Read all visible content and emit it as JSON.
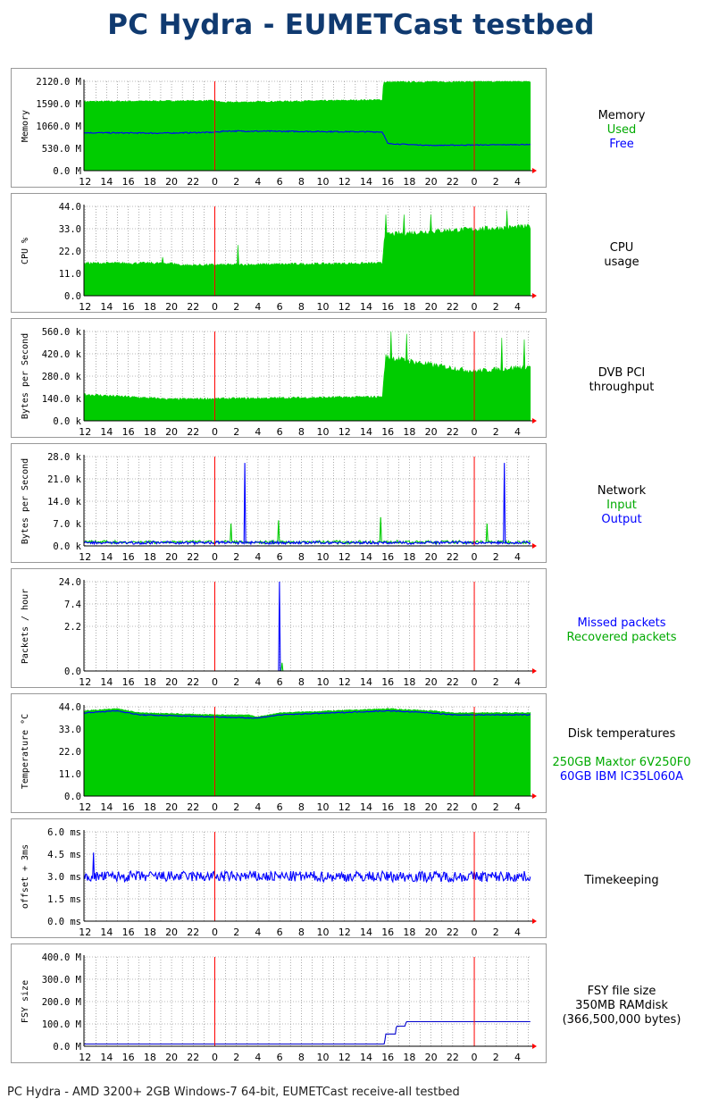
{
  "title": "PC Hydra - EUMETCast testbed",
  "footer": "PC Hydra - AMD 3200+ 2GB Windows-7 64-bit, EUMETCast receive-all testbed",
  "colors": {
    "green": "#00cc00",
    "blue": "#0000ff",
    "red": "#ff0000",
    "grid": "#777777",
    "label": "#000000"
  },
  "x_ticks": [
    "12",
    "14",
    "16",
    "18",
    "20",
    "22",
    "0",
    "2",
    "4",
    "6",
    "8",
    "10",
    "12",
    "14",
    "16",
    "18",
    "20",
    "22",
    "0",
    "2",
    "4"
  ],
  "chart_data": [
    {
      "type": "area",
      "ylabel": "Memory",
      "yticks": [
        "2120.0 M",
        "1590.0 M",
        "1060.0 M",
        "530.0 M",
        "0.0 M"
      ],
      "ylim": [
        0,
        2120
      ],
      "x_range_hours": [
        11.9,
        53.2
      ],
      "legend": [
        {
          "text": "Memory",
          "color": "#000000"
        },
        {
          "text": "Used",
          "color": "#00aa00"
        },
        {
          "text": "Free",
          "color": "#0000ff"
        }
      ],
      "series": [
        {
          "name": "Used",
          "style": "area",
          "color": "#00cc00",
          "noise": 0.01,
          "x": [
            11.9,
            23.9,
            24.8,
            39.5,
            39.6,
            53.2
          ],
          "values": [
            1640,
            1660,
            1620,
            1680,
            2100,
            2120
          ]
        },
        {
          "name": "Free",
          "style": "line",
          "color": "#0000ff",
          "noise": 0.015,
          "x": [
            11.9,
            19,
            23.9,
            25,
            39.5,
            40,
            44,
            53.2
          ],
          "values": [
            900,
            890,
            910,
            940,
            920,
            640,
            600,
            620
          ]
        }
      ]
    },
    {
      "type": "area",
      "ylabel": "CPU %",
      "yticks": [
        "44.0",
        "33.0",
        "22.0",
        "11.0",
        "0.0"
      ],
      "ylim": [
        0,
        44
      ],
      "x_range_hours": [
        11.9,
        53.2
      ],
      "legend": [
        {
          "text": "CPU",
          "color": "#000000"
        },
        {
          "text": "usage",
          "color": "#000000"
        }
      ],
      "series": [
        {
          "name": "",
          "style": "area",
          "color": "#00cc00",
          "noise": 0.04,
          "x": [
            11.9,
            20,
            21,
            39.5,
            39.7,
            45,
            53.2
          ],
          "values": [
            16,
            16,
            15,
            16,
            30,
            32,
            34
          ],
          "spikes": [
            {
              "x": 19.2,
              "v": 19
            },
            {
              "x": 26.1,
              "v": 25
            },
            {
              "x": 39.8,
              "v": 40
            },
            {
              "x": 41.5,
              "v": 40
            },
            {
              "x": 44,
              "v": 40
            },
            {
              "x": 51,
              "v": 42
            }
          ]
        }
      ]
    },
    {
      "type": "area",
      "ylabel": "Bytes per Second",
      "yticks": [
        "560.0 k",
        "420.0 k",
        "280.0 k",
        "140.0 k",
        "0.0 k"
      ],
      "ylim": [
        0,
        560
      ],
      "x_range_hours": [
        11.9,
        53.2
      ],
      "legend": [
        {
          "text": "DVB PCI",
          "color": "#000000"
        },
        {
          "text": "throughput",
          "color": "#000000"
        }
      ],
      "series": [
        {
          "name": "",
          "style": "area",
          "color": "#00cc00",
          "noise": 0.05,
          "x": [
            11.9,
            20,
            39.5,
            39.8,
            44,
            48,
            53.2
          ],
          "values": [
            165,
            135,
            150,
            400,
            350,
            310,
            340
          ],
          "spikes": [
            {
              "x": 40.3,
              "v": 560
            },
            {
              "x": 41.7,
              "v": 545
            },
            {
              "x": 50.5,
              "v": 520
            },
            {
              "x": 52.6,
              "v": 510
            }
          ]
        }
      ]
    },
    {
      "type": "line",
      "ylabel": "Bytes per Second",
      "yticks": [
        "28.0 k",
        "21.0 k",
        "14.0 k",
        "7.0 k",
        "0.0 k"
      ],
      "ylim": [
        0,
        28
      ],
      "x_range_hours": [
        11.9,
        53.2
      ],
      "legend": [
        {
          "text": "Network",
          "color": "#000000"
        },
        {
          "text": "Input",
          "color": "#00aa00"
        },
        {
          "text": "Output",
          "color": "#0000ff"
        }
      ],
      "series": [
        {
          "name": "Input",
          "style": "line",
          "color": "#00cc00",
          "noise": 0.1,
          "x": [
            11.9,
            53.2
          ],
          "values": [
            1.2,
            1.2
          ],
          "spikes": [
            {
              "x": 25.5,
              "v": 7
            },
            {
              "x": 29.9,
              "v": 8
            },
            {
              "x": 39.3,
              "v": 9
            },
            {
              "x": 49.2,
              "v": 7
            }
          ]
        },
        {
          "name": "Output",
          "style": "line",
          "color": "#0000ff",
          "noise": 0.1,
          "x": [
            11.9,
            53.2
          ],
          "values": [
            1.0,
            1.0
          ],
          "spikes": [
            {
              "x": 26.8,
              "v": 26
            },
            {
              "x": 50.8,
              "v": 26
            }
          ]
        }
      ]
    },
    {
      "type": "line",
      "ylabel": "Packets / hour",
      "yticks": [
        "24.0",
        "7.4",
        "2.2",
        "0.0"
      ],
      "ytick_pos": [
        1.0,
        0.75,
        0.5,
        0.0
      ],
      "ylim": [
        0,
        24
      ],
      "x_range_hours": [
        11.9,
        53.2
      ],
      "legend": [
        {
          "text": "Missed packets",
          "color": "#0000ff"
        },
        {
          "text": "Recovered packets",
          "color": "#00aa00"
        }
      ],
      "series": [
        {
          "name": "Recovered packets",
          "style": "line",
          "color": "#00cc00",
          "noise": 0,
          "x": [
            11.9,
            53.2
          ],
          "values": [
            0,
            0
          ],
          "spikes": [
            {
              "x": 30.2,
              "v": 2.2
            }
          ]
        },
        {
          "name": "Missed packets",
          "style": "line",
          "color": "#0000ff",
          "noise": 0,
          "x": [
            11.9,
            53.2
          ],
          "values": [
            0,
            0
          ],
          "spikes": [
            {
              "x": 30.0,
              "v": 24
            }
          ]
        }
      ]
    },
    {
      "type": "area",
      "ylabel": "Temperature °C",
      "yticks": [
        "44.0",
        "33.0",
        "22.0",
        "11.0",
        "0.0"
      ],
      "ylim": [
        0,
        44
      ],
      "x_range_hours": [
        11.9,
        53.2
      ],
      "legend": [
        {
          "text": "Disk temperatures",
          "color": "#000000"
        },
        {
          "text": "",
          "color": "#000000"
        },
        {
          "text": "250GB Maxtor 6V250F0",
          "color": "#00aa00"
        },
        {
          "text": "60GB IBM IC35L060A",
          "color": "#0000ff"
        }
      ],
      "series": [
        {
          "name": "250GB Maxtor 6V250F0",
          "style": "area",
          "color": "#00cc00",
          "noise": 0.006,
          "x": [
            11.9,
            15,
            17,
            24,
            27,
            28,
            30,
            35,
            40,
            44,
            46,
            53.2
          ],
          "values": [
            42,
            43,
            41,
            40,
            40,
            39,
            41,
            42,
            43,
            42,
            41,
            41
          ]
        },
        {
          "name": "60GB IBM IC35L060A",
          "style": "line",
          "color": "#0000ff",
          "noise": 0.006,
          "x": [
            11.9,
            15,
            17,
            24,
            27,
            28,
            30,
            35,
            40,
            44,
            46,
            53.2
          ],
          "values": [
            41,
            42,
            40,
            39,
            38.5,
            38.5,
            40,
            41,
            42,
            41,
            40,
            40
          ]
        }
      ]
    },
    {
      "type": "line",
      "ylabel": "offset + 3ms",
      "yticks": [
        "6.0 ms",
        "4.5 ms",
        "3.0 ms",
        "1.5 ms",
        "0.0 ms"
      ],
      "ylim": [
        0,
        6
      ],
      "x_range_hours": [
        11.9,
        53.2
      ],
      "legend": [
        {
          "text": "Timekeeping",
          "color": "#000000"
        }
      ],
      "series": [
        {
          "name": "",
          "style": "line",
          "color": "#0000ff",
          "noise": 0.12,
          "x": [
            11.9,
            53.2
          ],
          "values": [
            3.0,
            3.0
          ],
          "spikes": [
            {
              "x": 12.8,
              "v": 4.6
            }
          ]
        }
      ]
    },
    {
      "type": "line",
      "ylabel": "FSY size",
      "yticks": [
        "400.0 M",
        "300.0 M",
        "200.0 M",
        "100.0 M",
        "0.0 M"
      ],
      "ylim": [
        0,
        400
      ],
      "x_range_hours": [
        11.9,
        53.2
      ],
      "legend": [
        {
          "text": "FSY file size",
          "color": "#000000"
        },
        {
          "text": "350MB RAMdisk",
          "color": "#000000"
        },
        {
          "text": "(366,500,000 bytes)",
          "color": "#000000"
        }
      ],
      "series": [
        {
          "name": "",
          "style": "line",
          "color": "#0000cc",
          "noise": 0,
          "x": [
            11.9,
            39.7,
            39.8,
            40.7,
            40.8,
            41.6,
            41.7,
            53.2
          ],
          "values": [
            10,
            10,
            55,
            55,
            90,
            90,
            110,
            110
          ]
        }
      ]
    }
  ]
}
